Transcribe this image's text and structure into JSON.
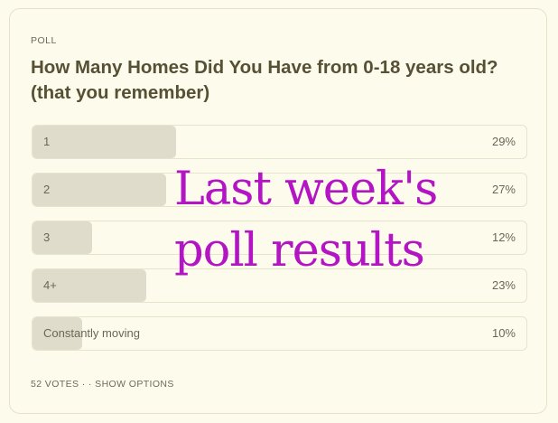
{
  "poll": {
    "label": "POLL",
    "question": "How Many Homes Did You Have from 0-18 years old? (that you remember)",
    "options": [
      {
        "label": "1",
        "percent_text": "29%",
        "fraction": 0.29
      },
      {
        "label": "2",
        "percent_text": "27%",
        "fraction": 0.27
      },
      {
        "label": "3",
        "percent_text": "12%",
        "fraction": 0.12
      },
      {
        "label": "4+",
        "percent_text": "23%",
        "fraction": 0.23
      },
      {
        "label": "Constantly moving",
        "percent_text": "10%",
        "fraction": 0.1
      }
    ],
    "votes": "52 VOTES",
    "separator": "· ·",
    "show_options": "SHOW OPTIONS"
  },
  "overlay": {
    "line1": "Last week's",
    "line2": "poll results"
  },
  "colors": {
    "background": "#fdfbec",
    "bar_fill": "#e0dccb",
    "question_text": "#565034",
    "overlay_text": "#b314c4"
  }
}
